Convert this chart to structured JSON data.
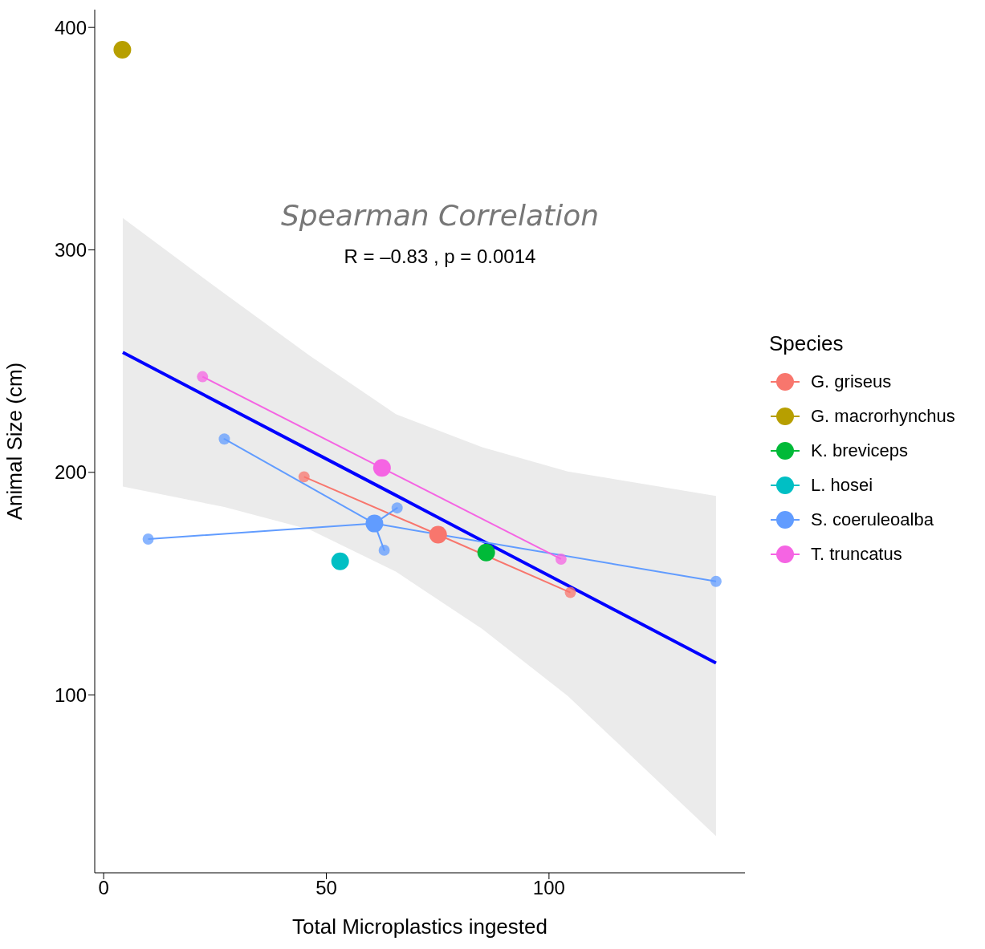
{
  "chart_data": {
    "type": "bubble",
    "xlabel": "Total Microplastics ingested",
    "ylabel": "Animal Size (cm)",
    "legend_title": "Species",
    "legend": "right",
    "marker": "circle",
    "xlim": [
      -2,
      144
    ],
    "xticks": [
      0,
      50,
      100
    ],
    "ylim": [
      20,
      408
    ],
    "yticks": [
      100,
      200,
      300,
      400
    ],
    "annotations": [
      "Spearman Correlation",
      "R = –0.83 , p = 0.0014"
    ],
    "series": [
      {
        "type": "line",
        "color": "#0000ff",
        "marker": "none",
        "x": [
          4.3,
          27.1,
          46.3,
          65.6,
          85.0,
          104.2,
          137.5
        ],
        "values": [
          253.9,
          230.0,
          209.9,
          189.7,
          169.3,
          149.2,
          114.3
        ],
        "lower": [
          193.6,
          184.4,
          174.2,
          155.4,
          129.6,
          99.5,
          36.5
        ],
        "upper": [
          314.3,
          280.4,
          252.4,
          226.2,
          211.3,
          200.4,
          189.4
        ]
      },
      {
        "type": "line",
        "color": "#f8766d",
        "marker": "none",
        "x": [
          45,
          75.1,
          104.8
        ],
        "values": [
          198,
          172,
          146
        ]
      },
      {
        "type": "line",
        "color": "#619cff",
        "marker": "none",
        "x": [
          10,
          60.8,
          27.1,
          60.8,
          65.9,
          60.8,
          63,
          60.8,
          137.5
        ],
        "values": [
          170,
          177,
          215,
          177,
          184,
          177,
          165,
          177,
          151
        ]
      },
      {
        "type": "line",
        "color": "#f564e3",
        "marker": "none",
        "x": [
          22.2,
          62.5,
          102.7
        ],
        "values": [
          243,
          202,
          161
        ]
      },
      {
        "name": "G. griseus",
        "color": "#f8766d",
        "x": [
          75.1,
          45,
          104.8
        ],
        "values": [
          172,
          198,
          146
        ],
        "sizes": [
          1,
          0.4,
          0.4
        ]
      },
      {
        "name": "G. macrorhynchus",
        "color": "#b79f00",
        "x": [
          4.2
        ],
        "values": [
          390
        ],
        "sizes": [
          1
        ]
      },
      {
        "name": "K. breviceps",
        "color": "#00ba38",
        "x": [
          85.9
        ],
        "values": [
          164
        ],
        "sizes": [
          1
        ]
      },
      {
        "name": "L. hosei",
        "color": "#00bfc4",
        "x": [
          53.1
        ],
        "values": [
          160
        ],
        "sizes": [
          1
        ]
      },
      {
        "name": "S. coeruleoalba",
        "color": "#619cff",
        "x": [
          60.8,
          10,
          27.1,
          65.9,
          63,
          137.5
        ],
        "values": [
          177,
          170,
          215,
          184,
          165,
          151
        ],
        "sizes": [
          1,
          0.4,
          0.4,
          0.4,
          0.4,
          0.4
        ]
      },
      {
        "name": "T. truncatus",
        "color": "#f564e3",
        "x": [
          62.5,
          22.2,
          102.7
        ],
        "values": [
          202,
          243,
          161
        ],
        "sizes": [
          1,
          0.4,
          0.4
        ]
      }
    ]
  }
}
